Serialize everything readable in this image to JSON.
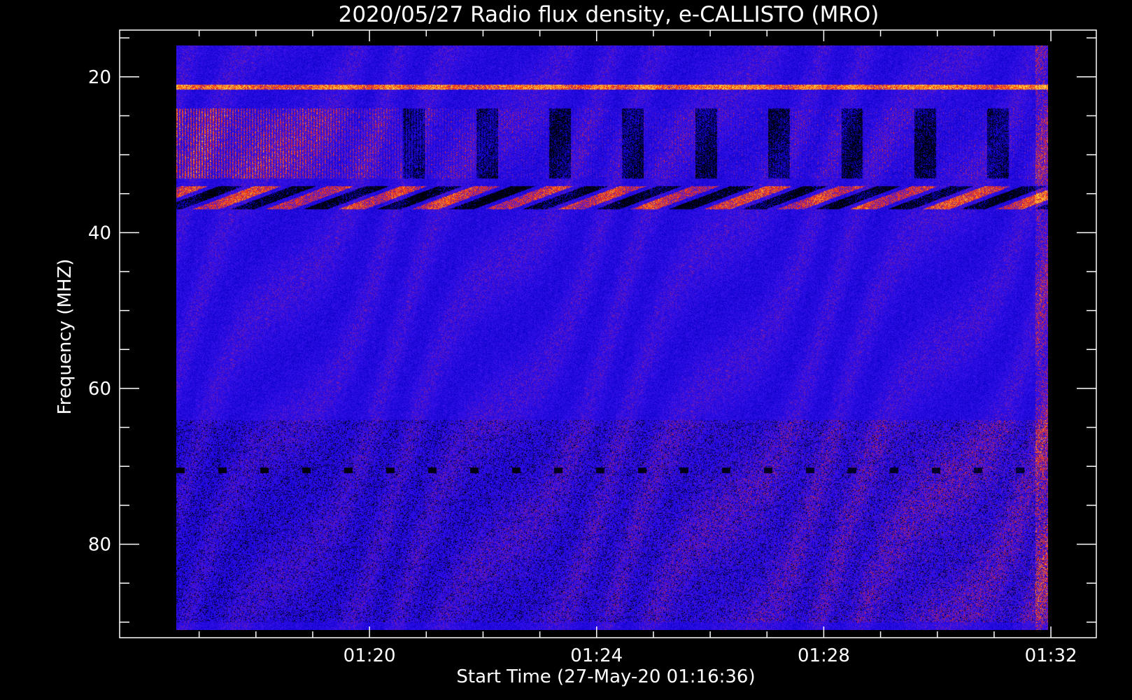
{
  "chart_data": {
    "type": "heatmap",
    "title": "2020/05/27  Radio flux density, e-CALLISTO (MRO)",
    "xlabel": "Start Time (27-May-20 01:16:36)",
    "ylabel": "Frequency (MHZ)",
    "x_ticks": [
      "01:20",
      "01:24",
      "01:28",
      "01:32"
    ],
    "y_ticks": [
      "20",
      "40",
      "60",
      "80"
    ],
    "y_tick_values": [
      20,
      40,
      60,
      80
    ],
    "x_tick_minutes": [
      20,
      24,
      28,
      32
    ],
    "xlim_minutes": [
      15.6,
      32.8
    ],
    "ylim_mhz": [
      14,
      92
    ],
    "data_start_minute": 16.6,
    "data_end_minute": 31.95,
    "data_freq_range_mhz": [
      16,
      91
    ],
    "y_axis_inverted": true,
    "colors": {
      "background": "#000000",
      "low": "#0a00c8",
      "mid": "#3c14f0",
      "high": "#ff3000",
      "peak": "#ffd040",
      "axes": "#ffffff"
    },
    "features": {
      "band_bright_mhz": [
        21,
        21.6
      ],
      "band_vertical_striations_mhz": [
        24,
        33
      ],
      "band_wavy_mhz": [
        34,
        37
      ],
      "band_dark_dashes_mhz": 70.5,
      "band_lower_noisy_mhz": [
        64,
        90
      ]
    }
  }
}
